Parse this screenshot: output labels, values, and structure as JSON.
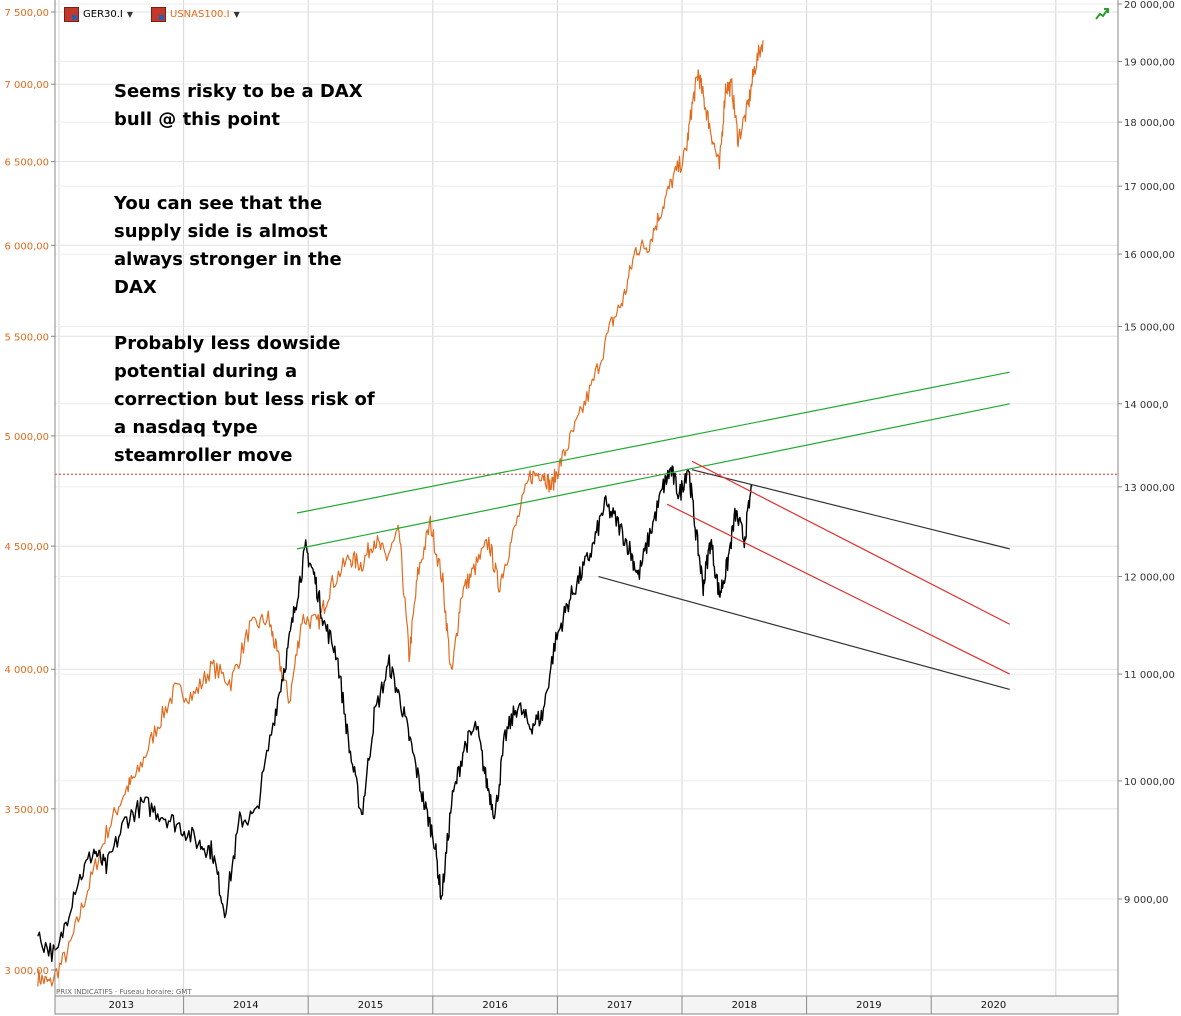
{
  "legend": [
    {
      "symbol": "GER30.I",
      "color": "#000000"
    },
    {
      "symbol": "USNAS100.I",
      "color": "#e06c1f"
    }
  ],
  "source_note": "PRIX INDICATIFS · Fuseau horaire: GMT",
  "annotations": [
    "Seems risky to be a DAX",
    "bull @ this point",
    "You can see that the",
    "supply side is almost",
    "always stronger in the",
    "DAX",
    "Probably less dowside",
    "potential during a",
    "correction but less risk of",
    "a nasdaq type",
    "steamroller move"
  ],
  "chart_data": {
    "type": "line",
    "title": "",
    "x_labels": [
      "2013",
      "2014",
      "2015",
      "2016",
      "2017",
      "2018",
      "2019",
      "2020"
    ],
    "left_axis": {
      "series": "USNAS100.I",
      "ticks": [
        "7 500,00",
        "7 000,00",
        "6 500,00",
        "6 000,00",
        "5 500,00",
        "5 000,00",
        "4 500,00",
        "4 000,00",
        "3 500,00",
        "3 000,00"
      ],
      "scale": "log",
      "ylim": [
        2900,
        7600
      ]
    },
    "right_axis": {
      "series": "GER30.I",
      "ticks": [
        "20 000,00",
        "19 000,00",
        "18 000,00",
        "17 000,00",
        "16 000,00",
        "15 000,00",
        "14 000,0",
        "13 000,00",
        "12 000,00",
        "11 000,00",
        "10 000,00",
        "9 000,00"
      ],
      "scale": "log",
      "ylim": [
        8300,
        20000
      ]
    },
    "series": [
      {
        "name": "USNAS100.I",
        "axis": "left",
        "color": "#e06c1f",
        "points": [
          [
            2012.8,
            2980
          ],
          [
            2012.9,
            2960
          ],
          [
            2013.05,
            3060
          ],
          [
            2013.2,
            3240
          ],
          [
            2013.35,
            3420
          ],
          [
            2013.5,
            3560
          ],
          [
            2013.6,
            3620
          ],
          [
            2013.75,
            3780
          ],
          [
            2013.9,
            3920
          ],
          [
            2014.05,
            3900
          ],
          [
            2014.2,
            4010
          ],
          [
            2014.35,
            3950
          ],
          [
            2014.5,
            4160
          ],
          [
            2014.65,
            4200
          ],
          [
            2014.72,
            4060
          ],
          [
            2014.82,
            3880
          ],
          [
            2014.92,
            4200
          ],
          [
            2015.05,
            4180
          ],
          [
            2015.15,
            4330
          ],
          [
            2015.3,
            4450
          ],
          [
            2015.4,
            4420
          ],
          [
            2015.5,
            4530
          ],
          [
            2015.6,
            4450
          ],
          [
            2015.7,
            4560
          ],
          [
            2015.78,
            4050
          ],
          [
            2015.85,
            4380
          ],
          [
            2015.95,
            4600
          ],
          [
            2016.05,
            4350
          ],
          [
            2016.12,
            3970
          ],
          [
            2016.2,
            4300
          ],
          [
            2016.3,
            4400
          ],
          [
            2016.42,
            4520
          ],
          [
            2016.5,
            4330
          ],
          [
            2016.6,
            4520
          ],
          [
            2016.75,
            4810
          ],
          [
            2016.85,
            4830
          ],
          [
            2016.92,
            4760
          ],
          [
            2017.0,
            4880
          ],
          [
            2017.12,
            5050
          ],
          [
            2017.25,
            5250
          ],
          [
            2017.4,
            5560
          ],
          [
            2017.5,
            5700
          ],
          [
            2017.6,
            5980
          ],
          [
            2017.7,
            6000
          ],
          [
            2017.8,
            6200
          ],
          [
            2017.9,
            6400
          ],
          [
            2018.0,
            6550
          ],
          [
            2018.05,
            6850
          ],
          [
            2018.1,
            7080
          ],
          [
            2018.15,
            6880
          ],
          [
            2018.2,
            6700
          ],
          [
            2018.27,
            6460
          ],
          [
            2018.32,
            6980
          ],
          [
            2018.37,
            6980
          ],
          [
            2018.42,
            6640
          ],
          [
            2018.5,
            6850
          ],
          [
            2018.55,
            7100
          ],
          [
            2018.62,
            7300
          ]
        ]
      },
      {
        "name": "GER30.I",
        "axis": "right",
        "color": "#000000",
        "points": [
          [
            2012.8,
            8700
          ],
          [
            2012.95,
            8550
          ],
          [
            2013.1,
            9100
          ],
          [
            2013.25,
            9400
          ],
          [
            2013.35,
            9250
          ],
          [
            2013.5,
            9650
          ],
          [
            2013.65,
            9800
          ],
          [
            2013.8,
            9700
          ],
          [
            2013.95,
            9600
          ],
          [
            2014.1,
            9450
          ],
          [
            2014.2,
            9400
          ],
          [
            2014.3,
            8900
          ],
          [
            2014.42,
            9650
          ],
          [
            2014.55,
            9700
          ],
          [
            2014.7,
            10600
          ],
          [
            2014.8,
            11200
          ],
          [
            2014.88,
            11800
          ],
          [
            2014.95,
            12300
          ],
          [
            2015.02,
            12000
          ],
          [
            2015.1,
            11500
          ],
          [
            2015.2,
            11200
          ],
          [
            2015.3,
            10300
          ],
          [
            2015.4,
            9700
          ],
          [
            2015.5,
            10600
          ],
          [
            2015.62,
            11100
          ],
          [
            2015.72,
            10700
          ],
          [
            2015.8,
            10300
          ],
          [
            2015.9,
            9800
          ],
          [
            2015.98,
            9500
          ],
          [
            2016.04,
            9000
          ],
          [
            2016.12,
            9800
          ],
          [
            2016.22,
            10300
          ],
          [
            2016.32,
            10500
          ],
          [
            2016.4,
            10000
          ],
          [
            2016.47,
            9700
          ],
          [
            2016.55,
            10400
          ],
          [
            2016.65,
            10700
          ],
          [
            2016.75,
            10500
          ],
          [
            2016.85,
            10600
          ],
          [
            2016.95,
            11300
          ],
          [
            2017.05,
            11700
          ],
          [
            2017.15,
            12000
          ],
          [
            2017.25,
            12300
          ],
          [
            2017.35,
            12800
          ],
          [
            2017.45,
            12600
          ],
          [
            2017.55,
            12300
          ],
          [
            2017.62,
            12000
          ],
          [
            2017.72,
            12500
          ],
          [
            2017.82,
            13000
          ],
          [
            2017.88,
            13200
          ],
          [
            2017.95,
            12900
          ],
          [
            2018.02,
            13250
          ],
          [
            2018.08,
            12500
          ],
          [
            2018.14,
            11900
          ],
          [
            2018.2,
            12400
          ],
          [
            2018.27,
            11800
          ],
          [
            2018.33,
            12100
          ],
          [
            2018.4,
            12700
          ],
          [
            2018.47,
            12400
          ],
          [
            2018.53,
            13000
          ]
        ]
      }
    ],
    "trend_lines": [
      {
        "name": "green-upper",
        "color": "#22aa33",
        "axis": "right",
        "from": [
          2014.88,
          12700
        ],
        "to": [
          2020.6,
          14400
        ]
      },
      {
        "name": "green-lower",
        "color": "#22aa33",
        "axis": "right",
        "from": [
          2014.88,
          12300
        ],
        "to": [
          2020.6,
          14000
        ]
      },
      {
        "name": "black-upper",
        "color": "#333333",
        "axis": "right",
        "from": [
          2018.05,
          13200
        ],
        "to": [
          2020.6,
          12300
        ]
      },
      {
        "name": "black-lower",
        "color": "#333333",
        "axis": "right",
        "from": [
          2017.3,
          12000
        ],
        "to": [
          2020.6,
          10850
        ]
      },
      {
        "name": "red-upper",
        "color": "#e03030",
        "axis": "right",
        "from": [
          2018.05,
          13300
        ],
        "to": [
          2020.6,
          11500
        ]
      },
      {
        "name": "red-lower",
        "color": "#e03030",
        "axis": "right",
        "from": [
          2017.85,
          12800
        ],
        "to": [
          2020.6,
          11000
        ]
      }
    ],
    "reference_line": {
      "axis": "left",
      "value": 4820,
      "color": "#e03030",
      "style": "dotted"
    }
  }
}
